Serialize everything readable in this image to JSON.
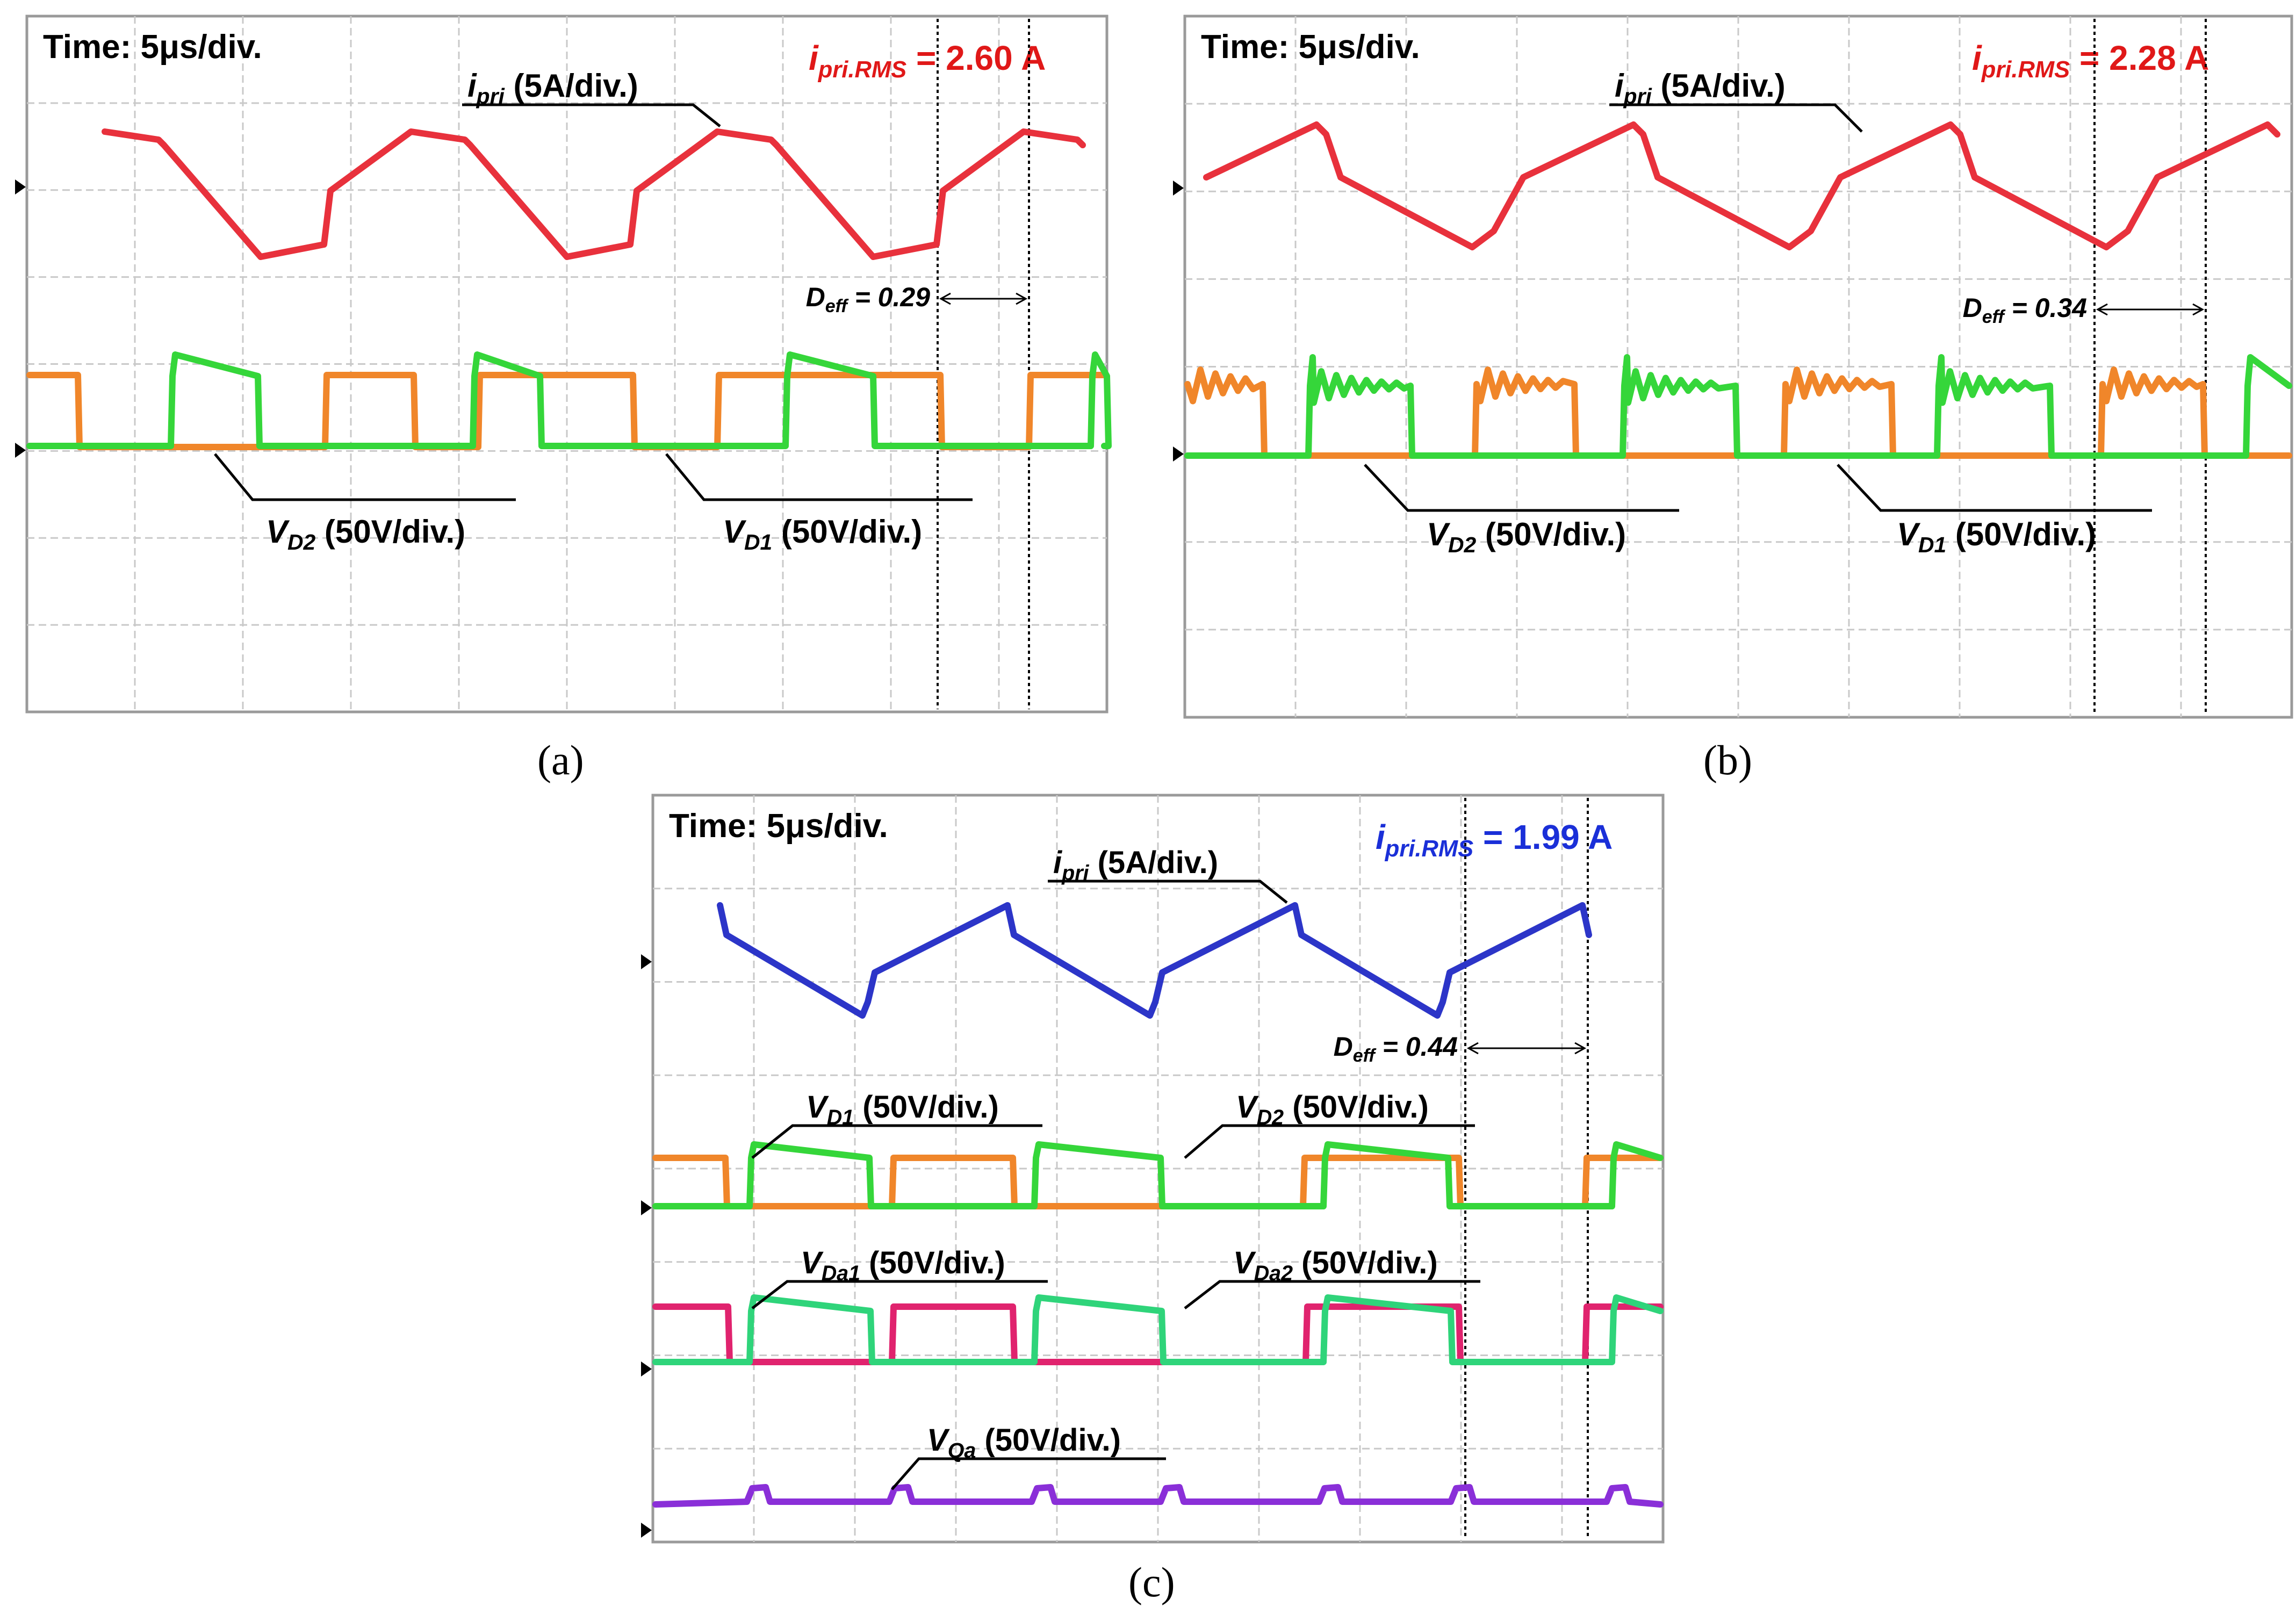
{
  "colors": {
    "red": "#e8313c",
    "orange": "#f0862a",
    "green": "#35d63a",
    "blue": "#2c35c8",
    "magenta": "#e0236e",
    "teal_green": "#2fd47a",
    "purple": "#8a2fd8",
    "rms_red": "#e01818",
    "rms_blue": "#1a2fd8",
    "grid": "#c9c9c9",
    "frame": "#9a9a9a"
  },
  "chart_data": [
    {
      "id": "a",
      "type": "line",
      "caption": "(a)",
      "time_label": "Time: 5μs/div.",
      "rms": {
        "sym": "i",
        "sub": "pri.RMS",
        "value": " = 2.60 A",
        "color_key": "rms_red"
      },
      "deff": {
        "sym": "D",
        "sub": "eff",
        "value": " = 0.29"
      },
      "labels": [
        {
          "sym": "i",
          "sub": "pri",
          "unit": " (5A/div.)"
        },
        {
          "sym": "V",
          "sub": "D2",
          "unit": " (50V/div.)"
        },
        {
          "sym": "V",
          "sub": "D1",
          "unit": " (50V/div.)"
        }
      ],
      "series": [
        {
          "color_key": "red",
          "name": "ipri"
        },
        {
          "color_key": "orange",
          "name": "VD2"
        },
        {
          "color_key": "green",
          "name": "VD1"
        }
      ]
    },
    {
      "id": "b",
      "type": "line",
      "caption": "(b)",
      "time_label": "Time: 5μs/div.",
      "rms": {
        "sym": "i",
        "sub": "pri.RMS",
        "value": " = 2.28 A",
        "color_key": "rms_red"
      },
      "deff": {
        "sym": "D",
        "sub": "eff",
        "value": " = 0.34"
      },
      "labels": [
        {
          "sym": "i",
          "sub": "pri",
          "unit": " (5A/div.)"
        },
        {
          "sym": "V",
          "sub": "D2",
          "unit": " (50V/div.)"
        },
        {
          "sym": "V",
          "sub": "D1",
          "unit": " (50V/div.)"
        }
      ],
      "series": [
        {
          "color_key": "red",
          "name": "ipri"
        },
        {
          "color_key": "orange",
          "name": "VD2"
        },
        {
          "color_key": "green",
          "name": "VD1"
        }
      ]
    },
    {
      "id": "c",
      "type": "line",
      "caption": "(c)",
      "time_label": "Time: 5μs/div.",
      "rms": {
        "sym": "i",
        "sub": "pri.RMS",
        "value": " = 1.99 A",
        "color_key": "rms_blue"
      },
      "deff": {
        "sym": "D",
        "sub": "eff",
        "value": " = 0.44"
      },
      "labels": [
        {
          "sym": "i",
          "sub": "pri",
          "unit": " (5A/div.)"
        },
        {
          "sym": "V",
          "sub": "D1",
          "unit": " (50V/div.)"
        },
        {
          "sym": "V",
          "sub": "D2",
          "unit": " (50V/div.)"
        },
        {
          "sym": "V",
          "sub": "Da1",
          "unit": " (50V/div.)"
        },
        {
          "sym": "V",
          "sub": "Da2",
          "unit": " (50V/div.)"
        },
        {
          "sym": "V",
          "sub": "Qa",
          "unit": " (50V/div.)"
        }
      ],
      "series": [
        {
          "color_key": "blue",
          "name": "ipri"
        },
        {
          "color_key": "orange",
          "name": "VD1"
        },
        {
          "color_key": "green",
          "name": "VD2"
        },
        {
          "color_key": "magenta",
          "name": "VDa1"
        },
        {
          "color_key": "teal_green",
          "name": "VDa2"
        },
        {
          "color_key": "purple",
          "name": "VQa"
        }
      ]
    }
  ]
}
